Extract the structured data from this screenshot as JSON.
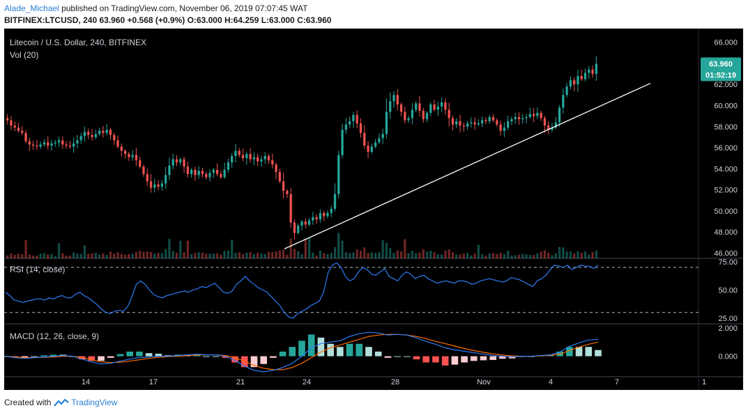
{
  "header": {
    "author": "Alade_Michael",
    "published": "published on TradingView.com, November 06, 2019 07:07:45 WAT",
    "symbol": "BITFINEX:LTCUSD, 240",
    "last": "63.960",
    "change": "+0.568 (+0.9%)",
    "o_label": "O:",
    "o": "63.000",
    "h_label": "H:",
    "h": "64.259",
    "l_label": "L:",
    "l": "63.000",
    "c_label": "C:",
    "c": "63.960"
  },
  "footer": {
    "created_with": "Created with",
    "brand": "TradingView",
    "logo_icon": "tradingview-logo-icon"
  },
  "colors": {
    "bull": "#26a69a",
    "bear": "#ef5350",
    "rsi": "#2f7cf6",
    "macd": "#2f7cf6",
    "signal": "#ff6d00",
    "trend": "#ffffff",
    "background": "#000000",
    "axis_text": "#d1d4dc",
    "price_badge": "#26a69a"
  },
  "chart_data": {
    "type": "candlestick",
    "title": "Litecoin / U.S. Dollar, 240, BITFINEX",
    "volume_label": "Vol (20)",
    "price_axis_ticks": [
      "66.000",
      "64.000",
      "62.000",
      "60.000",
      "58.000",
      "56.000",
      "54.000",
      "52.000",
      "50.000",
      "48.000",
      "46.000"
    ],
    "price_range": [
      45.5,
      67.3
    ],
    "current_price_label": "63.960",
    "countdown_label": "01:52:19",
    "x_ticks": [
      "14",
      "17",
      "21",
      "24",
      "28",
      "Nov",
      "4",
      "7",
      "1"
    ],
    "approx_closes": [
      58.6,
      58.1,
      57.9,
      57.6,
      57.4,
      56.6,
      56.3,
      56.2,
      56.1,
      56.3,
      56.5,
      56.2,
      56.4,
      56.5,
      56.7,
      56.3,
      56.2,
      56.1,
      56.4,
      56.7,
      57.1,
      57.5,
      57.2,
      57.0,
      57.3,
      57.6,
      57.4,
      57.7,
      57.2,
      56.7,
      56.1,
      55.7,
      55.4,
      55.1,
      55.3,
      54.8,
      54.2,
      53.5,
      52.8,
      52.2,
      52.5,
      52.3,
      52.6,
      53.4,
      54.3,
      54.9,
      54.6,
      54.9,
      54.2,
      53.5,
      53.9,
      53.4,
      53.8,
      53.5,
      53.2,
      53.6,
      53.9,
      53.5,
      53.2,
      53.9,
      54.6,
      55.2,
      55.7,
      55.3,
      55.0,
      55.4,
      54.9,
      55.1,
      54.7,
      54.9,
      55.2,
      54.8,
      54.4,
      53.7,
      52.8,
      51.9,
      51.6,
      48.9,
      47.9,
      48.6,
      49.0,
      48.7,
      49.1,
      49.4,
      49.2,
      49.8,
      49.5,
      49.8,
      50.2,
      51.6,
      55.3,
      57.7,
      58.2,
      58.5,
      59.1,
      58.3,
      57.4,
      56.2,
      55.6,
      56.1,
      56.5,
      56.9,
      57.3,
      59.4,
      60.4,
      61.0,
      60.1,
      59.4,
      58.6,
      58.8,
      59.6,
      60.2,
      59.5,
      58.7,
      59.3,
      60.1,
      59.6,
      59.9,
      60.3,
      59.6,
      58.8,
      58.2,
      58.5,
      58.1,
      58.0,
      58.3,
      58.4,
      58.2,
      58.3,
      58.6,
      58.5,
      58.9,
      58.6,
      58.2,
      57.6,
      57.9,
      58.5,
      58.7,
      58.9,
      58.7,
      58.8,
      58.9,
      59.2,
      59.0,
      59.3,
      58.8,
      58.1,
      57.7,
      57.9,
      58.4,
      59.8,
      61.0,
      61.8,
      62.4,
      62.0,
      62.8,
      62.5,
      63.1,
      63.4,
      63.0,
      63.96
    ],
    "trendline": {
      "from": {
        "x_tick": "23",
        "price": 46.4
      },
      "to": {
        "x_tick": "8",
        "price": 62.1
      }
    },
    "rsi": {
      "label": "RSI (14, close)",
      "ticks": [
        "75.00",
        "50.00",
        "25.00"
      ],
      "levels": [
        70,
        30
      ],
      "range": [
        20,
        78
      ],
      "approx_values": [
        48,
        45,
        41,
        40,
        39,
        40,
        41,
        42,
        42,
        41,
        43,
        42,
        44,
        45,
        43,
        43,
        46,
        48,
        45,
        43,
        40,
        37,
        33,
        30,
        29,
        31,
        32,
        31,
        35,
        44,
        55,
        58,
        55,
        50,
        46,
        44,
        43,
        45,
        46,
        47,
        48,
        49,
        48,
        50,
        51,
        53,
        52,
        54,
        56,
        52,
        48,
        47,
        49,
        55,
        58,
        62,
        58,
        55,
        52,
        50,
        48,
        44,
        40,
        36,
        30,
        26,
        25,
        29,
        31,
        33,
        36,
        38,
        40,
        48,
        65,
        72,
        74,
        70,
        62,
        58,
        60,
        66,
        70,
        68,
        64,
        63,
        66,
        69,
        62,
        60,
        58,
        63,
        66,
        64,
        60,
        62,
        63,
        60,
        58,
        56,
        57,
        58,
        57,
        56,
        58,
        58,
        57,
        55,
        56,
        58,
        59,
        60,
        59,
        58,
        57,
        58,
        61,
        60,
        59,
        57,
        55,
        53,
        58,
        60,
        63,
        68,
        72,
        71,
        70,
        72,
        68,
        70,
        72,
        71,
        71,
        69,
        72
      ]
    },
    "macd": {
      "label": "MACD (12, 26, close, 9)",
      "ticks": [
        "2.000",
        "0.000"
      ],
      "range": [
        -1.45,
        2.3
      ],
      "approx_macd": [
        0.0,
        -0.1,
        -0.15,
        -0.1,
        -0.05,
        0.0,
        0.05,
        0.0,
        -0.2,
        -0.4,
        -0.55,
        -0.5,
        -0.35,
        -0.2,
        -0.1,
        -0.05,
        0.0,
        0.0,
        0.05,
        0.1,
        0.15,
        0.1,
        0.1,
        0.0,
        -0.3,
        -0.7,
        -1.0,
        -1.1,
        -1.0,
        -0.8,
        -0.5,
        0.0,
        0.6,
        0.9,
        1.0,
        1.1,
        1.4,
        1.6,
        1.7,
        1.65,
        1.5,
        1.55,
        1.5,
        1.3,
        1.05,
        0.85,
        0.6,
        0.45,
        0.35,
        0.25,
        0.15,
        0.05,
        0.0,
        -0.05,
        0.0,
        0.0,
        0.05,
        0.1,
        0.3,
        0.7,
        0.95,
        1.15,
        1.2
      ],
      "approx_signal": [
        0.0,
        -0.05,
        -0.1,
        -0.1,
        -0.08,
        -0.05,
        0.0,
        0.0,
        -0.1,
        -0.25,
        -0.4,
        -0.45,
        -0.42,
        -0.35,
        -0.25,
        -0.15,
        -0.08,
        -0.03,
        0.0,
        0.05,
        0.08,
        0.1,
        0.1,
        0.05,
        -0.1,
        -0.35,
        -0.65,
        -0.85,
        -0.95,
        -0.95,
        -0.8,
        -0.5,
        -0.1,
        0.3,
        0.6,
        0.8,
        1.0,
        1.2,
        1.4,
        1.5,
        1.55,
        1.55,
        1.5,
        1.4,
        1.25,
        1.05,
        0.9,
        0.72,
        0.55,
        0.4,
        0.28,
        0.17,
        0.08,
        0.02,
        0.0,
        0.0,
        0.02,
        0.06,
        0.15,
        0.4,
        0.65,
        0.85,
        1.0
      ]
    }
  }
}
